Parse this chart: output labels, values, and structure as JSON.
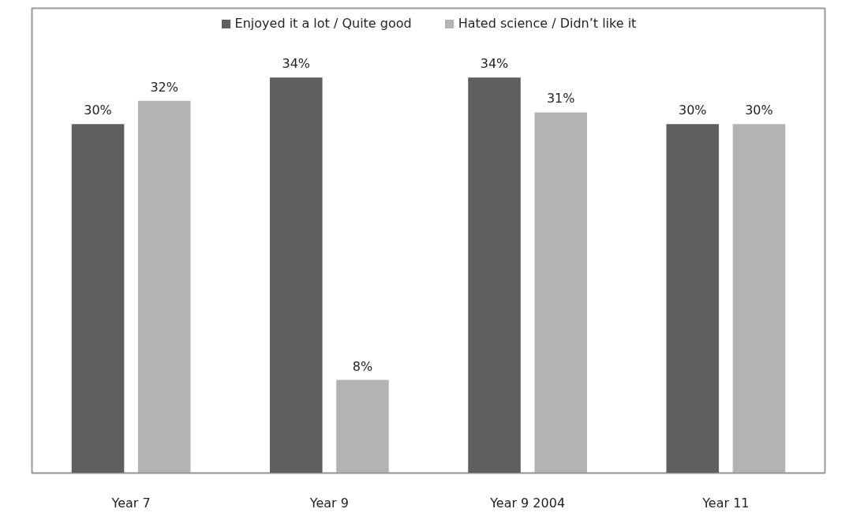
{
  "chart_data": {
    "type": "bar",
    "categories": [
      "Year 7",
      "Year 9",
      "Year 9 2004",
      "Year 11"
    ],
    "series": [
      {
        "name": "Enjoyed it a lot / Quite good",
        "color": "#5f5f5f",
        "values": [
          30,
          34,
          34,
          30
        ],
        "value_labels": [
          "30%",
          "34%",
          "34%",
          "30%"
        ]
      },
      {
        "name": "Hated science / Didn’t like it",
        "color": "#b3b3b3",
        "values": [
          32,
          8,
          31,
          30
        ],
        "value_labels": [
          "32%",
          "8%",
          "31%",
          "30%"
        ]
      }
    ],
    "tick_labels": "x",
    "grid": false,
    "legend": "top"
  }
}
